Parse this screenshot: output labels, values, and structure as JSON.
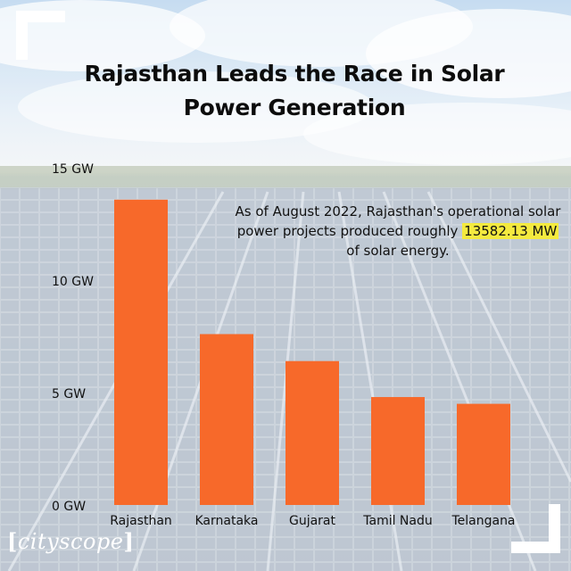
{
  "title": {
    "line1": "Rajasthan Leads the Race in Solar",
    "line2": "Power Generation"
  },
  "annotation": {
    "before": "As of August 2022, Rajasthan's operational solar power projects produced roughly ",
    "highlight": "13582.13 MW",
    "after": " of solar energy."
  },
  "brand": {
    "logo_text": "cityscope",
    "open_mark": "[",
    "close_mark": "]"
  },
  "colors": {
    "bar": "#f7692a",
    "text": "#111111",
    "highlight": "#f4ea3f"
  },
  "chart_data": {
    "type": "bar",
    "title": "Rajasthan Leads the Race in Solar Power Generation",
    "xlabel": "",
    "ylabel": "",
    "categories": [
      "Rajasthan",
      "Karnataka",
      "Gujarat",
      "Tamil Nadu",
      "Telangana"
    ],
    "values": [
      13.58,
      7.6,
      6.4,
      4.8,
      4.5
    ],
    "unit": "GW",
    "ylim": [
      0,
      15
    ],
    "yticks": [
      0,
      5,
      10,
      15
    ],
    "ytick_labels": [
      "0 GW",
      "5 GW",
      "10 GW",
      "15 GW"
    ],
    "grid": false,
    "legend": "none"
  }
}
